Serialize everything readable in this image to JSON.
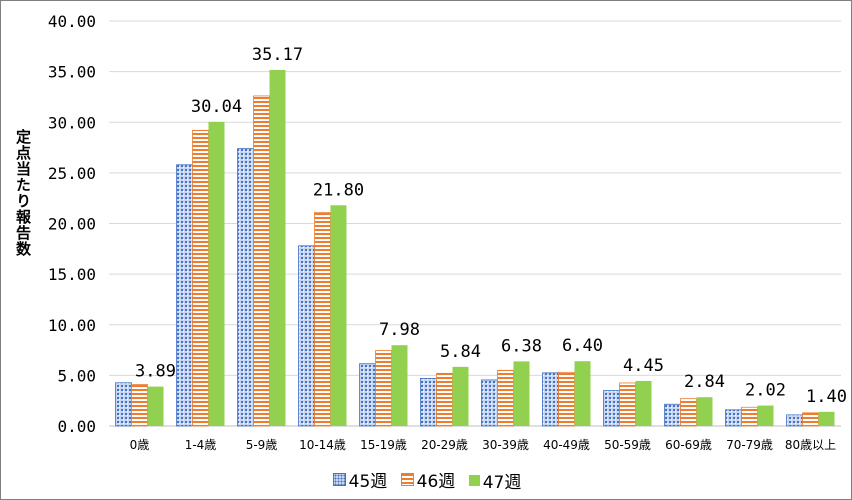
{
  "chart_data": {
    "type": "bar",
    "title": "",
    "xlabel": "",
    "ylabel": "定点当たり報告数",
    "ylim": [
      0,
      40
    ],
    "yticks": [
      "0.00",
      "5.00",
      "10.00",
      "15.00",
      "20.00",
      "25.00",
      "30.00",
      "35.00",
      "40.00"
    ],
    "grid": true,
    "legend_position": "bottom",
    "categories": [
      "0歳",
      "1-4歳",
      "5-9歳",
      "10-14歳",
      "15-19歳",
      "20-29歳",
      "30-39歳",
      "40-49歳",
      "50-59歳",
      "60-69歳",
      "70-79歳",
      "80歳以上"
    ],
    "series": [
      {
        "name": "45週",
        "color": "#4472C4",
        "values": [
          4.27,
          25.8,
          27.4,
          17.8,
          6.15,
          4.7,
          4.55,
          5.25,
          3.5,
          2.15,
          1.6,
          1.1
        ]
      },
      {
        "name": "46週",
        "color": "#ED7D31",
        "values": [
          4.1,
          29.2,
          32.6,
          21.1,
          7.45,
          5.2,
          5.5,
          5.3,
          4.25,
          2.7,
          1.85,
          1.3
        ]
      },
      {
        "name": "47週",
        "color": "#92D050",
        "values": [
          3.89,
          30.04,
          35.17,
          21.8,
          7.98,
          5.84,
          6.38,
          6.4,
          4.45,
          2.84,
          2.02,
          1.4
        ]
      }
    ],
    "data_labels": [
      "3.89",
      "30.04",
      "35.17",
      "21.80",
      "7.98",
      "5.84",
      "6.38",
      "6.40",
      "4.45",
      "2.84",
      "2.02",
      "1.40"
    ]
  }
}
